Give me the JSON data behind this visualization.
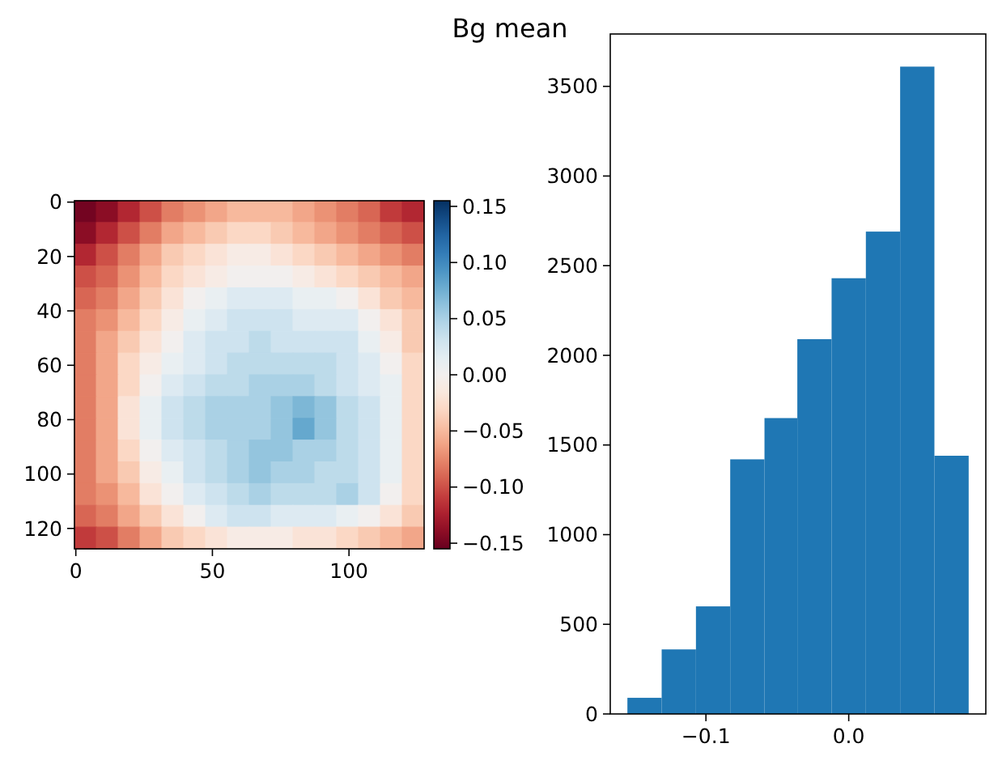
{
  "chart_data": [
    {
      "type": "heatmap",
      "x": [
        3.5,
        11.5,
        19.5,
        27.5,
        35.5,
        43.5,
        51.5,
        59.5,
        67.5,
        75.5,
        83.5,
        91.5,
        99.5,
        107.5,
        115.5,
        123.5
      ],
      "y": [
        3.5,
        11.5,
        19.5,
        27.5,
        35.5,
        43.5,
        51.5,
        59.5,
        67.5,
        75.5,
        83.5,
        91.5,
        99.5,
        107.5,
        115.5,
        123.5
      ],
      "xlim": [
        -0.5,
        127.5
      ],
      "ylim": [
        127.5,
        -0.5
      ],
      "xticks": [
        0,
        50,
        100
      ],
      "yticks": [
        0,
        20,
        40,
        60,
        80,
        100,
        120
      ],
      "cells": [
        [
          -0.15,
          -0.14,
          -0.12,
          -0.1,
          -0.08,
          -0.07,
          -0.06,
          -0.05,
          -0.05,
          -0.05,
          -0.06,
          -0.07,
          -0.08,
          -0.09,
          -0.11,
          -0.12
        ],
        [
          -0.14,
          -0.12,
          -0.1,
          -0.08,
          -0.06,
          -0.05,
          -0.04,
          -0.03,
          -0.03,
          -0.04,
          -0.05,
          -0.06,
          -0.07,
          -0.08,
          -0.09,
          -0.1
        ],
        [
          -0.12,
          -0.1,
          -0.08,
          -0.06,
          -0.04,
          -0.03,
          -0.02,
          -0.01,
          -0.01,
          -0.02,
          -0.03,
          -0.04,
          -0.05,
          -0.06,
          -0.07,
          -0.08
        ],
        [
          -0.1,
          -0.09,
          -0.07,
          -0.05,
          -0.03,
          -0.02,
          -0.01,
          0.0,
          0.0,
          0.0,
          -0.01,
          -0.02,
          -0.03,
          -0.04,
          -0.05,
          -0.06
        ],
        [
          -0.09,
          -0.08,
          -0.06,
          -0.04,
          -0.02,
          0.0,
          0.01,
          0.02,
          0.02,
          0.02,
          0.01,
          0.01,
          0.0,
          -0.02,
          -0.04,
          -0.05
        ],
        [
          -0.08,
          -0.07,
          -0.05,
          -0.03,
          -0.01,
          0.01,
          0.02,
          0.03,
          0.03,
          0.03,
          0.02,
          0.02,
          0.02,
          0.0,
          -0.02,
          -0.04
        ],
        [
          -0.08,
          -0.06,
          -0.04,
          -0.02,
          0.0,
          0.02,
          0.03,
          0.03,
          0.04,
          0.03,
          0.03,
          0.03,
          0.03,
          0.01,
          -0.01,
          -0.04
        ],
        [
          -0.08,
          -0.06,
          -0.03,
          -0.01,
          0.01,
          0.02,
          0.03,
          0.04,
          0.04,
          0.04,
          0.04,
          0.04,
          0.03,
          0.02,
          0.0,
          -0.03
        ],
        [
          -0.08,
          -0.06,
          -0.03,
          0.0,
          0.02,
          0.03,
          0.04,
          0.04,
          0.05,
          0.05,
          0.05,
          0.04,
          0.03,
          0.02,
          0.01,
          -0.03
        ],
        [
          -0.08,
          -0.06,
          -0.02,
          0.01,
          0.03,
          0.04,
          0.05,
          0.05,
          0.05,
          0.06,
          0.07,
          0.06,
          0.04,
          0.03,
          0.01,
          -0.03
        ],
        [
          -0.08,
          -0.06,
          -0.02,
          0.01,
          0.03,
          0.04,
          0.05,
          0.05,
          0.05,
          0.06,
          0.08,
          0.06,
          0.04,
          0.03,
          0.01,
          -0.03
        ],
        [
          -0.08,
          -0.06,
          -0.03,
          0.0,
          0.02,
          0.03,
          0.04,
          0.05,
          0.06,
          0.06,
          0.05,
          0.05,
          0.04,
          0.03,
          0.01,
          -0.03
        ],
        [
          -0.08,
          -0.06,
          -0.04,
          -0.01,
          0.01,
          0.03,
          0.04,
          0.05,
          0.06,
          0.05,
          0.05,
          0.04,
          0.04,
          0.03,
          0.01,
          -0.03
        ],
        [
          -0.08,
          -0.07,
          -0.05,
          -0.02,
          0.0,
          0.02,
          0.03,
          0.04,
          0.05,
          0.04,
          0.04,
          0.04,
          0.05,
          0.03,
          0.0,
          -0.03
        ],
        [
          -0.09,
          -0.08,
          -0.06,
          -0.04,
          -0.02,
          0.0,
          0.02,
          0.03,
          0.03,
          0.02,
          0.02,
          0.02,
          0.01,
          0.0,
          -0.02,
          -0.04
        ],
        [
          -0.11,
          -0.1,
          -0.08,
          -0.06,
          -0.04,
          -0.03,
          -0.02,
          -0.01,
          -0.01,
          -0.01,
          -0.02,
          -0.02,
          -0.03,
          -0.04,
          -0.05,
          -0.06
        ]
      ],
      "clim": [
        -0.155,
        0.155
      ],
      "cticks": [
        {
          "value": -0.15,
          "label": "−0.15"
        },
        {
          "value": -0.1,
          "label": "−0.10"
        },
        {
          "value": -0.05,
          "label": "−0.05"
        },
        {
          "value": 0,
          "label": "0.00"
        },
        {
          "value": 0.05,
          "label": "0.05"
        },
        {
          "value": 0.1,
          "label": "0.10"
        },
        0.15
      ]
    },
    {
      "type": "histogram",
      "title": "Bg mean",
      "bins": [
        -0.155,
        -0.131,
        -0.107,
        -0.083,
        -0.059,
        -0.036,
        -0.012,
        0.012,
        0.036,
        0.06,
        0.084
      ],
      "values": [
        90,
        360,
        600,
        1420,
        1650,
        2090,
        2430,
        2690,
        3610,
        1440
      ],
      "color": "#1f77b4",
      "xlim": [
        -0.167,
        0.096
      ],
      "ylim": [
        0,
        3792
      ],
      "xticks": [
        {
          "value": -0.1,
          "label": "−0.1"
        },
        {
          "value": 0,
          "label": "0.0"
        }
      ],
      "yticks": [
        0,
        500,
        1000,
        1500,
        2000,
        2500,
        3000,
        3500
      ]
    }
  ]
}
